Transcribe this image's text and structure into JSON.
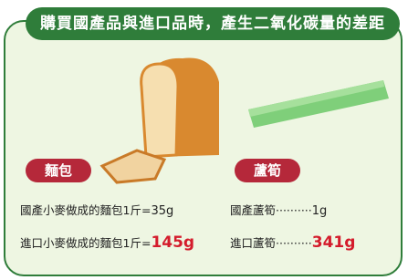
{
  "header": {
    "title": "購買國產品與進口品時，產生二氧化碳量的差距"
  },
  "items": [
    {
      "label": "麵包",
      "rows": [
        {
          "text": "國產小麥做成的麵包1斤=",
          "amount": "35g"
        },
        {
          "text": "進口小麥做成的麵包1斤=",
          "amount": "145g"
        }
      ]
    },
    {
      "label": "蘆筍",
      "rows": [
        {
          "text": "國產蘆筍··········",
          "amount": "1g"
        },
        {
          "text": "進口蘆筍··········",
          "amount": "341g"
        }
      ]
    }
  ]
}
